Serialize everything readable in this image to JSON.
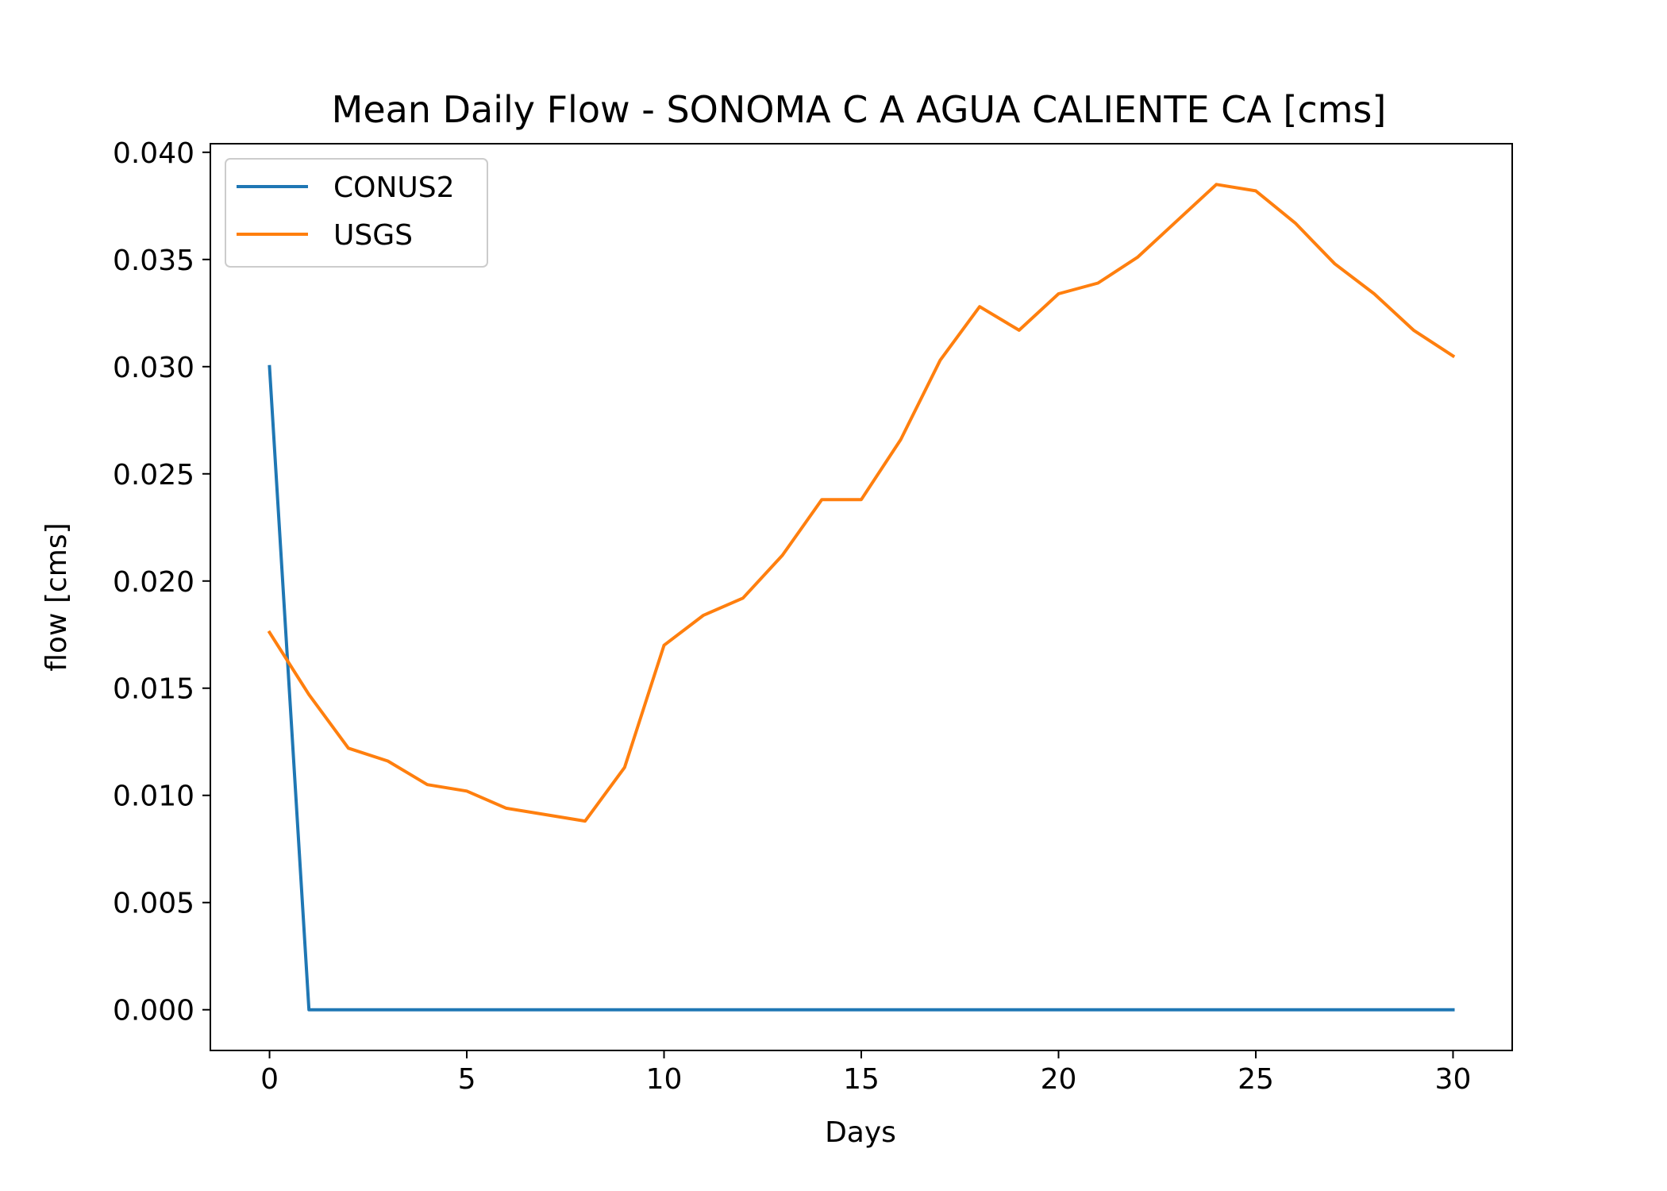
{
  "chart_data": {
    "type": "line",
    "title": "Mean Daily Flow - SONOMA C A AGUA CALIENTE CA [cms]",
    "xlabel": "Days",
    "ylabel": "flow [cms]",
    "xlim": [
      -1.5,
      31.5
    ],
    "ylim": [
      -0.0019,
      0.0404
    ],
    "xticks": [
      0,
      5,
      10,
      15,
      20,
      25,
      30
    ],
    "xtick_labels": [
      "0",
      "5",
      "10",
      "15",
      "20",
      "25",
      "30"
    ],
    "yticks": [
      0.0,
      0.005,
      0.01,
      0.015,
      0.02,
      0.025,
      0.03,
      0.035,
      0.04
    ],
    "ytick_labels": [
      "0.000",
      "0.005",
      "0.010",
      "0.015",
      "0.020",
      "0.025",
      "0.030",
      "0.035",
      "0.040"
    ],
    "grid": false,
    "legend_position": "upper-left",
    "x": [
      0,
      1,
      2,
      3,
      4,
      5,
      6,
      7,
      8,
      9,
      10,
      11,
      12,
      13,
      14,
      15,
      16,
      17,
      18,
      19,
      20,
      21,
      22,
      23,
      24,
      25,
      26,
      27,
      28,
      29,
      30
    ],
    "series": [
      {
        "name": "CONUS2",
        "color": "#1f77b4",
        "values": [
          0.03,
          0,
          0,
          0,
          0,
          0,
          0,
          0,
          0,
          0,
          0,
          0,
          0,
          0,
          0,
          0,
          0,
          0,
          0,
          0,
          0,
          0,
          0,
          0,
          0,
          0,
          0,
          0,
          0,
          0,
          0
        ]
      },
      {
        "name": "USGS",
        "color": "#ff7f0e",
        "values": [
          0.0176,
          0.0147,
          0.0122,
          0.0116,
          0.0105,
          0.0102,
          0.0094,
          0.0091,
          0.0088,
          0.0113,
          0.017,
          0.0184,
          0.0192,
          0.0212,
          0.0238,
          0.0238,
          0.0266,
          0.0303,
          0.0328,
          0.0317,
          0.0334,
          0.0339,
          0.0351,
          0.0368,
          0.0385,
          0.0382,
          0.0367,
          0.0348,
          0.0334,
          0.0317,
          0.0305
        ]
      }
    ]
  }
}
